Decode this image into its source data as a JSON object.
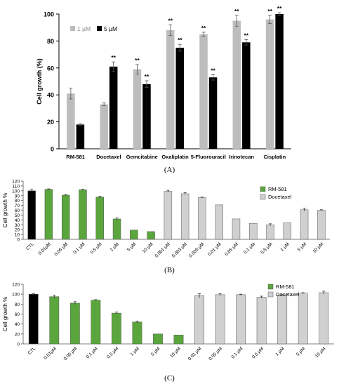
{
  "chart_data": [
    {
      "panel": "(A)",
      "type": "bar",
      "ylabel": "Cell growth (%)",
      "ylim": [
        0,
        100
      ],
      "yticks": [
        0,
        20,
        40,
        60,
        80,
        100
      ],
      "categories": [
        "RM-581",
        "Docetaxel",
        "Gemcitabine",
        "Oxaliplatin",
        "5-Fluorouracil",
        "Irinotecan",
        "Cisplatin"
      ],
      "legend_position": "top-left",
      "series": [
        {
          "name": "1 µM",
          "color": "#bdbdbd",
          "values": [
            41,
            33,
            59,
            88,
            85,
            95,
            96
          ],
          "errors": [
            4,
            1,
            3.5,
            4,
            1.5,
            4,
            3
          ],
          "marks": [
            "",
            "",
            "**",
            "**",
            "**",
            "**",
            "**"
          ]
        },
        {
          "name": "5 µM",
          "color": "#000000",
          "values": [
            18,
            61,
            48,
            75,
            53,
            79,
            100
          ],
          "errors": [
            0.5,
            3.5,
            2.5,
            2.5,
            2,
            2,
            1
          ],
          "marks": [
            "",
            "**",
            "**",
            "**",
            "**",
            "**",
            "**"
          ]
        }
      ]
    },
    {
      "panel": "(B)",
      "type": "bar",
      "ylabel": "Cell growth %",
      "ylim": [
        0,
        120
      ],
      "yticks": [
        0,
        10,
        20,
        30,
        40,
        50,
        60,
        70,
        80,
        90,
        100,
        110,
        120
      ],
      "legend_position": "top-right",
      "categories": [
        "CTL",
        "0.01µM",
        "0.05 µM",
        "0.1 µM",
        "0.5 µM",
        "1 µM",
        "5 µM",
        "10 µM",
        "0.001 µM",
        "0.003 µM",
        "0.005 µM",
        "0.01 µM",
        "0.05 µM",
        "0.1 µM",
        "0.5 µM",
        "1 µM",
        "5 µM",
        "10 µM"
      ],
      "values": [
        100,
        103,
        91,
        102,
        87,
        42,
        19,
        16,
        99,
        94,
        86,
        71,
        42,
        33,
        30,
        34,
        61,
        60
      ],
      "errors": [
        3,
        1,
        1,
        1,
        2,
        2,
        0,
        0,
        2,
        2,
        1,
        0,
        0,
        0,
        2,
        0,
        3,
        1
      ],
      "groups": [
        "CTL",
        "RM-581",
        "RM-581",
        "RM-581",
        "RM-581",
        "RM-581",
        "RM-581",
        "RM-581",
        "Docetaxel",
        "Docetaxel",
        "Docetaxel",
        "Docetaxel",
        "Docetaxel",
        "Docetaxel",
        "Docetaxel",
        "Docetaxel",
        "Docetaxel",
        "Docetaxel"
      ],
      "legend": [
        {
          "name": "RM-581",
          "color": "#5aa63c"
        },
        {
          "name": "Docetaxel",
          "color": "#d0d0d0"
        }
      ]
    },
    {
      "panel": "(C)",
      "type": "bar",
      "ylabel": "Cell growth %",
      "ylim": [
        0,
        120
      ],
      "yticks": [
        0,
        20,
        40,
        60,
        80,
        100,
        120
      ],
      "legend_position": "top-right",
      "categories": [
        "CTL",
        "0.01µM",
        "0.05 µM",
        "0.1 µM",
        "0.5 µM",
        "1 µM",
        "5 µM",
        "10 µM",
        "0.01 µM",
        "0.05 µM",
        "0.1 µM",
        "0.5 µM",
        "1 µM",
        "5 µM",
        "10 µM"
      ],
      "values": [
        100,
        95,
        82,
        88,
        62,
        44,
        20,
        18,
        97,
        99,
        99,
        94,
        98,
        102,
        103
      ],
      "errors": [
        1,
        3,
        3,
        1,
        2,
        2,
        0,
        0,
        4,
        2,
        1,
        2,
        1,
        1,
        3
      ],
      "groups": [
        "CTL",
        "RM-581",
        "RM-581",
        "RM-581",
        "RM-581",
        "RM-581",
        "RM-581",
        "RM-581",
        "Docetaxel",
        "Docetaxel",
        "Docetaxel",
        "Docetaxel",
        "Docetaxel",
        "Docetaxel",
        "Docetaxel"
      ],
      "legend": [
        {
          "name": "RM-581",
          "color": "#5aa63c"
        },
        {
          "name": "Docetaxel",
          "color": "#d0d0d0"
        }
      ]
    }
  ],
  "colors": {
    "CTL": "#000000",
    "RM-581": "#5aa63c",
    "Docetaxel": "#d0d0d0"
  }
}
